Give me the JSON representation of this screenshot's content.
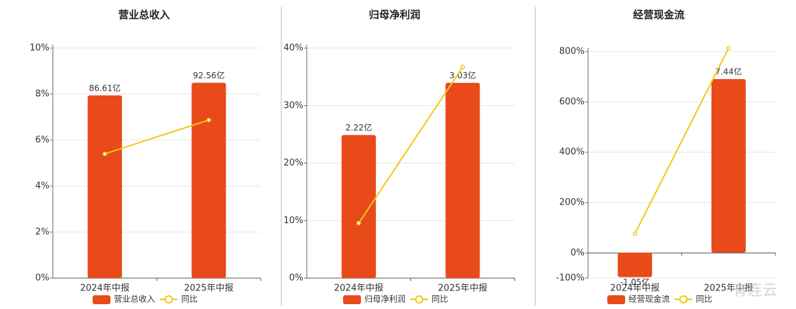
{
  "chart_data": [
    {
      "type": "bar",
      "title": "营业总收入",
      "categories": [
        "2024年中报",
        "2025年中报"
      ],
      "series": [
        {
          "name": "营业总收入",
          "color": "#e84a1a",
          "axis": "y2",
          "values": [
            86.61,
            92.56
          ],
          "value_labels": [
            "86.61亿",
            "92.56亿"
          ]
        },
        {
          "name": "同比",
          "color": "#f2c811",
          "type": "line",
          "values": [
            5.4,
            6.87
          ]
        }
      ],
      "ylim": [
        0,
        10
      ],
      "yticks": [
        {
          "value": 0,
          "label": "0%"
        },
        {
          "value": 2,
          "label": "2%"
        },
        {
          "value": 4,
          "label": "4%"
        },
        {
          "value": 6,
          "label": "6%"
        },
        {
          "value": 8,
          "label": "8%"
        },
        {
          "value": 10,
          "label": "10%"
        }
      ],
      "y2lim": [
        0,
        109
      ],
      "grid": true
    },
    {
      "type": "bar",
      "title": "归母净利润",
      "categories": [
        "2024年中报",
        "2025年中报"
      ],
      "series": [
        {
          "name": "归母净利润",
          "color": "#e84a1a",
          "axis": "y2",
          "values": [
            2.22,
            3.03
          ],
          "value_labels": [
            "2.22亿",
            "3.03亿"
          ]
        },
        {
          "name": "同比",
          "color": "#f2c811",
          "type": "line",
          "values": [
            9.55,
            36.7
          ]
        }
      ],
      "ylim": [
        0,
        40
      ],
      "yticks": [
        {
          "value": 0,
          "label": "0%"
        },
        {
          "value": 10,
          "label": "10%"
        },
        {
          "value": 20,
          "label": "20%"
        },
        {
          "value": 30,
          "label": "30%"
        },
        {
          "value": 40,
          "label": "40%"
        }
      ],
      "y2lim": [
        0,
        3.57
      ],
      "grid": true
    },
    {
      "type": "bar",
      "title": "经营现金流",
      "categories": [
        "2024年中报",
        "2025年中报"
      ],
      "series": [
        {
          "name": "经营现金流",
          "color": "#e84a1a",
          "axis": "y2",
          "values": [
            -1.05,
            7.44
          ],
          "value_labels": [
            "-1.05亿",
            "7.44亿"
          ]
        },
        {
          "name": "同比",
          "color": "#f2c811",
          "type": "line",
          "values": [
            76,
            813
          ]
        }
      ],
      "ylim": [
        -100,
        800
      ],
      "yticks": [
        {
          "value": -100,
          "label": "-100%"
        },
        {
          "value": 0,
          "label": "0%"
        },
        {
          "value": 200,
          "label": "200%"
        },
        {
          "value": 400,
          "label": "400%"
        },
        {
          "value": 600,
          "label": "600%"
        },
        {
          "value": 800,
          "label": "800%"
        }
      ],
      "y2lim": [
        -1.09,
        8.62
      ],
      "grid": true
    }
  ],
  "watermark": "有连云"
}
